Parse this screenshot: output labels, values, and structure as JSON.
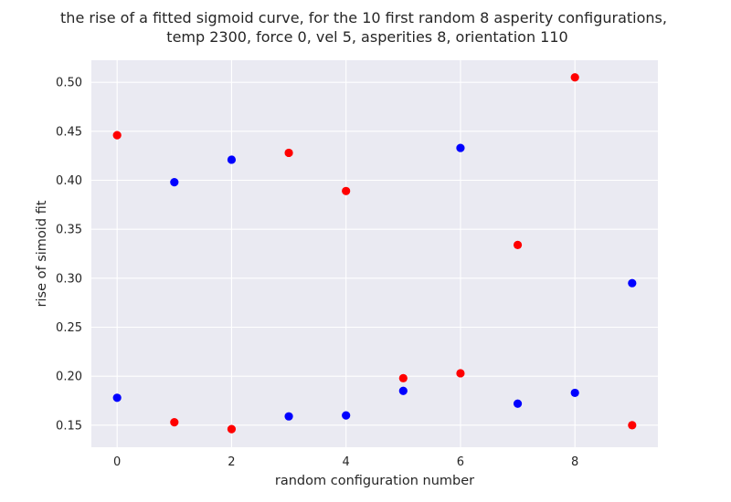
{
  "chart_data": {
    "type": "scatter",
    "title_lines": [
      "the rise of a fitted sigmoid curve, for the 10 first random 8 asperity configurations,",
      "temp 2300, force 0, vel 5, asperities 8, orientation 110"
    ],
    "xlabel": "random configuration number",
    "ylabel": "rise of simoid fit",
    "xlim": [
      -0.45,
      9.45
    ],
    "ylim": [
      0.1275,
      0.5225
    ],
    "xticks": [
      0,
      2,
      4,
      6,
      8
    ],
    "yticks": [
      0.15,
      0.2,
      0.25,
      0.3,
      0.35,
      0.4,
      0.45,
      0.5
    ],
    "ytick_labels": [
      "0.15",
      "0.20",
      "0.25",
      "0.30",
      "0.35",
      "0.40",
      "0.45",
      "0.50"
    ],
    "grid": true,
    "colors": {
      "background": "#eaeaf2",
      "grid": "#ffffff",
      "text": "#262626"
    },
    "series": [
      {
        "color": "#ff0000",
        "x": [
          0,
          1,
          2,
          3,
          4,
          5,
          6,
          7,
          8,
          9
        ],
        "y": [
          0.446,
          0.153,
          0.146,
          0.428,
          0.389,
          0.198,
          0.203,
          0.334,
          0.505,
          0.15
        ]
      },
      {
        "color": "#0000ff",
        "x": [
          0,
          1,
          2,
          3,
          4,
          5,
          6,
          7,
          8,
          9
        ],
        "y": [
          0.178,
          0.398,
          0.421,
          0.159,
          0.16,
          0.185,
          0.433,
          0.172,
          0.183,
          0.295
        ]
      }
    ]
  }
}
